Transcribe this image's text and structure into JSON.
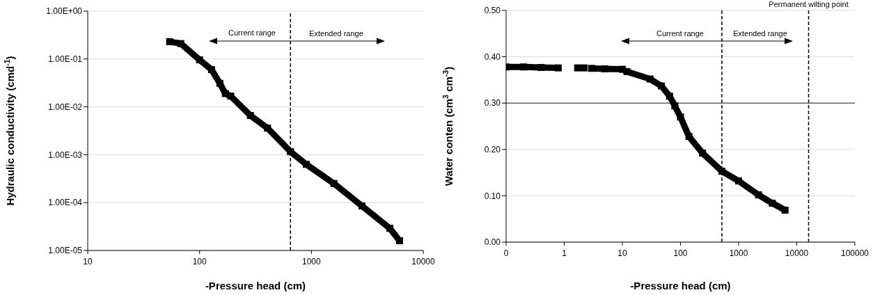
{
  "chart_data": [
    {
      "type": "line",
      "xlabel": "-Pressure head (cm)",
      "ylabel": "Hydraulic conductivity (cmd$^{-1}$)",
      "log": "xy",
      "grid": "y",
      "marker": "square",
      "x": [
        54,
        68,
        100,
        128,
        152,
        170,
        190,
        285,
        405,
        650,
        900,
        1590,
        2830,
        5030,
        6140
      ],
      "series": [
        {
          "color": "#000000",
          "values": [
            0.23,
            0.21,
            0.096,
            0.06,
            0.031,
            0.019,
            0.0168,
            0.0066,
            0.0036,
            0.00116,
            0.00063,
            0.00025,
            8.5e-05,
            2.9e-05,
            1.6e-05
          ]
        }
      ],
      "xlim": [
        10,
        10000
      ],
      "xticks": [
        10,
        100,
        1000,
        10000
      ],
      "ylim": [
        1e-05,
        1
      ],
      "yticks": [
        {
          "value": 1e-05,
          "label": "1.00E-05"
        },
        {
          "value": 0.0001,
          "label": "1.00E-04"
        },
        {
          "value": 0.001,
          "label": "1.00E-03"
        },
        {
          "value": 0.01,
          "label": "1.00E-02"
        },
        {
          "value": 0.1,
          "label": "1.00E-01"
        },
        {
          "value": 1,
          "label": "1.00E+00"
        }
      ],
      "ref_lines": [
        {
          "axis": "x",
          "value": 650,
          "color": "#000000",
          "line_style": "dashed"
        }
      ],
      "annotations": [
        "Current range",
        "Extended range"
      ]
    },
    {
      "type": "line",
      "xlabel": "-Pressure head (cm)",
      "ylabel": "Water conten (cm$^{3}$ cm$^{-3}$)",
      "log": "x",
      "grid": "y",
      "marker": "square",
      "x": [
        0.1,
        0.2,
        0.4,
        0.79,
        1.2,
        1.7,
        2.2,
        2.6,
        2.96,
        5,
        10,
        12,
        30,
        47,
        65,
        80,
        100,
        140,
        240,
        516,
        1000,
        2200,
        3800,
        6300
      ],
      "series": [
        {
          "color": "#000000",
          "values": [
            0.378,
            0.378,
            0.377,
            0.376,
            null,
            0.376,
            0.376,
            null,
            0.375,
            0.374,
            0.373,
            0.368,
            0.352,
            0.337,
            0.315,
            0.294,
            0.27,
            0.228,
            0.192,
            0.153,
            0.132,
            0.102,
            0.084,
            0.069
          ]
        }
      ],
      "xlim": [
        0.1,
        100000
      ],
      "xticks": [
        {
          "value": 0.1,
          "label": "0"
        },
        1,
        10,
        100,
        1000,
        10000,
        100000
      ],
      "ylim": [
        0,
        0.5
      ],
      "yticks": [
        {
          "value": 0,
          "label": "0.00"
        },
        {
          "value": 0.1,
          "label": "0.10"
        },
        {
          "value": 0.2,
          "label": "0.20"
        },
        {
          "value": 0.3,
          "label": "0.30"
        },
        {
          "value": 0.4,
          "label": "0.40"
        },
        {
          "value": 0.5,
          "label": "0.50"
        }
      ],
      "ref_lines": [
        {
          "axis": "x",
          "value": 516,
          "color": "#000000",
          "line_style": "dashed"
        },
        {
          "axis": "x",
          "value": 16000,
          "label": "Permanent wilting point",
          "color": "#000000",
          "line_style": "dashed"
        },
        {
          "axis": "y",
          "value": 0.3,
          "color": "#666666",
          "line_style": "solid"
        }
      ],
      "annotations": [
        "Current range",
        "Extended range"
      ]
    }
  ]
}
